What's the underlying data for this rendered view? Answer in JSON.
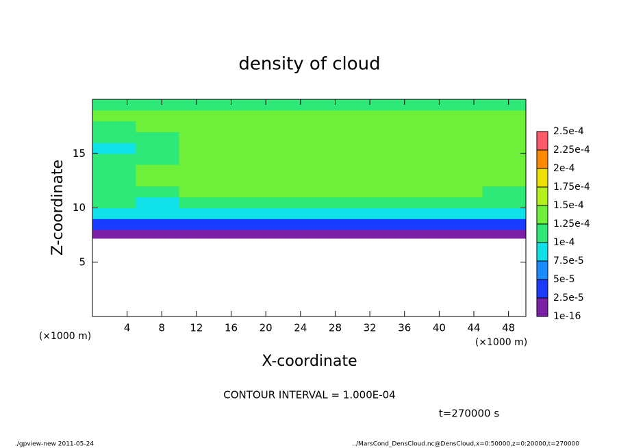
{
  "chart_data": {
    "type": "heatmap",
    "title": "density of cloud",
    "xlabel": "X-coordinate",
    "ylabel": "Z-coordinate",
    "x_unit_left": "(×1000 m)",
    "x_unit_right": "(×1000 m)",
    "contour_note": "CONTOUR INTERVAL = 1.000E-04",
    "time_note": "t=270000 s",
    "footer_left": "./gpview-new  2011-05-24",
    "footer_right": "../MarsCond_DensCloud.nc@DensCloud,x=0:50000,z=0:20000,t=270000",
    "xlim": [
      0,
      50
    ],
    "xticks": [
      4,
      8,
      12,
      16,
      20,
      24,
      28,
      32,
      36,
      40,
      44,
      48
    ],
    "ylim": [
      0,
      20
    ],
    "yticks": [
      5,
      10,
      15
    ],
    "x_edges": [
      0,
      5,
      10,
      15,
      20,
      25,
      30,
      35,
      40,
      45,
      50
    ],
    "z_edges": [
      7.2,
      8,
      9,
      10,
      11,
      12,
      13,
      14,
      15,
      16,
      17,
      18,
      19,
      20
    ],
    "values": [
      [
        1e-05,
        1e-05,
        1e-05,
        1e-05,
        1e-05,
        1e-05,
        1e-05,
        1e-05,
        1e-05,
        1e-05
      ],
      [
        4e-05,
        4e-05,
        4e-05,
        4e-05,
        4e-05,
        4e-05,
        4e-05,
        4e-05,
        4e-05,
        4e-05
      ],
      [
        8e-05,
        8e-05,
        8e-05,
        8e-05,
        8e-05,
        8e-05,
        8e-05,
        8e-05,
        8e-05,
        8e-05
      ],
      [
        0.00011,
        9e-05,
        0.00012,
        0.00012,
        0.00012,
        0.00012,
        0.00012,
        0.00012,
        0.00012,
        0.00012
      ],
      [
        0.00012,
        0.00011,
        0.00013,
        0.00013,
        0.00013,
        0.00013,
        0.00013,
        0.00013,
        0.00013,
        0.00012
      ],
      [
        0.00012,
        0.00013,
        0.00013,
        0.00013,
        0.00014,
        0.00014,
        0.00014,
        0.00014,
        0.00014,
        0.00013
      ],
      [
        0.00011,
        0.00013,
        0.00013,
        0.00013,
        0.00014,
        0.00014,
        0.00014,
        0.00014,
        0.00014,
        0.00014
      ],
      [
        0.00011,
        0.00012,
        0.00014,
        0.00013,
        0.00014,
        0.00014,
        0.00014,
        0.00014,
        0.00014,
        0.00014
      ],
      [
        9e-05,
        0.00011,
        0.00014,
        0.00013,
        0.00014,
        0.00014,
        0.00014,
        0.00014,
        0.00014,
        0.00014
      ],
      [
        0.00011,
        0.00012,
        0.00014,
        0.00013,
        0.00014,
        0.00014,
        0.00014,
        0.00014,
        0.00014,
        0.00013
      ],
      [
        0.00012,
        0.00013,
        0.00013,
        0.00013,
        0.00013,
        0.00014,
        0.00014,
        0.00013,
        0.00013,
        0.00013
      ],
      [
        0.00013,
        0.00013,
        0.00013,
        0.00013,
        0.00013,
        0.00013,
        0.00013,
        0.00013,
        0.00013,
        0.00013
      ],
      [
        0.00012,
        0.00011,
        0.00012,
        0.00011,
        0.00012,
        0.00012,
        0.00012,
        0.00012,
        0.00012,
        0.00012
      ]
    ],
    "colorbar_ticks": [
      {
        "value": 1e-16,
        "label": "1e-16"
      },
      {
        "value": 2.5e-05,
        "label": "2.5e-5"
      },
      {
        "value": 5e-05,
        "label": "5e-5"
      },
      {
        "value": 7.5e-05,
        "label": "7.5e-5"
      },
      {
        "value": 0.0001,
        "label": "1e-4"
      },
      {
        "value": 0.000125,
        "label": "1.25e-4"
      },
      {
        "value": 0.00015,
        "label": "1.5e-4"
      },
      {
        "value": 0.000175,
        "label": "1.75e-4"
      },
      {
        "value": 0.0002,
        "label": "2e-4"
      },
      {
        "value": 0.000225,
        "label": "2.25e-4"
      },
      {
        "value": 0.00025,
        "label": "2.5e-4"
      }
    ],
    "colorbar_colors": [
      "#7a1fa6",
      "#1a3cff",
      "#1a8cff",
      "#10e0e8",
      "#2ee878",
      "#6ef03a",
      "#b4f01e",
      "#f0e000",
      "#ff8a00",
      "#ff5a6a"
    ]
  }
}
